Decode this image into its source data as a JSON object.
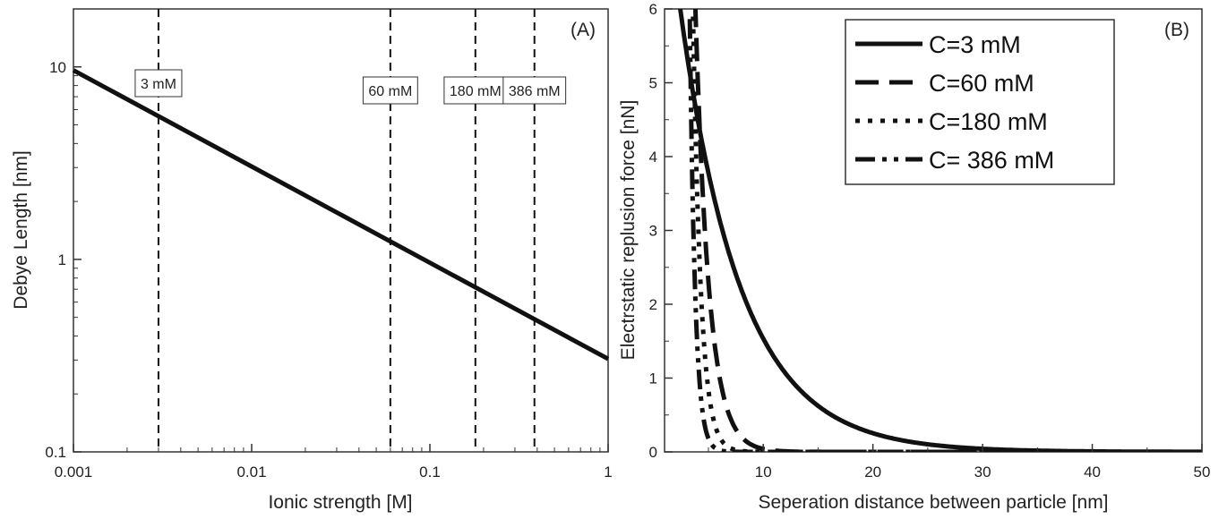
{
  "chart_data": [
    {
      "type": "line",
      "panel_label": "(A)",
      "xlabel": "Ionic strength [M]",
      "ylabel": "Debye Length [nm]",
      "xscale": "log",
      "yscale": "log",
      "xlim": [
        0.001,
        1
      ],
      "ylim": [
        0.1,
        20
      ],
      "xticks": [
        0.001,
        0.01,
        0.1,
        1
      ],
      "xtick_labels": [
        "0.001",
        "0.01",
        "0.1",
        "1"
      ],
      "yticks": [
        0.1,
        1,
        10
      ],
      "ytick_labels": [
        "0.1",
        "1",
        "10"
      ],
      "series": [
        {
          "x": [
            0.001,
            0.003,
            0.06,
            0.18,
            0.386,
            1
          ],
          "y": [
            9.6,
            5.55,
            1.24,
            0.716,
            0.489,
            0.304
          ]
        }
      ],
      "vlines": [
        {
          "x": 0.003,
          "label": "3 mM"
        },
        {
          "x": 0.06,
          "label": "60 mM"
        },
        {
          "x": 0.18,
          "label": "180 mM"
        },
        {
          "x": 0.386,
          "label": "386 mM"
        }
      ],
      "grid": false
    },
    {
      "type": "line",
      "panel_label": "(B)",
      "xlabel": "Seperation distance between particle [nm]",
      "ylabel": "Electrstatic replusion force [nN]",
      "xlim": [
        1,
        50
      ],
      "ylim": [
        0,
        6
      ],
      "xticks": [
        10,
        20,
        30,
        40,
        50
      ],
      "xtick_labels": [
        "10",
        "20",
        "30",
        "40",
        "50"
      ],
      "yticks": [
        0,
        1,
        2,
        3,
        4,
        5,
        6
      ],
      "ytick_labels": [
        "0",
        "1",
        "2",
        "3",
        "4",
        "5",
        "6"
      ],
      "legend_position": "top-right",
      "series": [
        {
          "name": "C=3 mM",
          "style": "solid",
          "amplitude": 9.3,
          "decay_length": 5.55
        },
        {
          "name": "C=60 mM",
          "style": "dashed",
          "amplitude": 130,
          "decay_length": 1.24
        },
        {
          "name": "C=180 mM",
          "style": "dotted",
          "amplitude": 900,
          "decay_length": 0.716
        },
        {
          "name": "C= 386  mM",
          "style": "dash-dot-dot",
          "amplitude": 5000,
          "decay_length": 0.489
        }
      ],
      "grid": false
    }
  ],
  "colors": {
    "line": "#111111",
    "axis": "#333333",
    "background": "#ffffff"
  }
}
